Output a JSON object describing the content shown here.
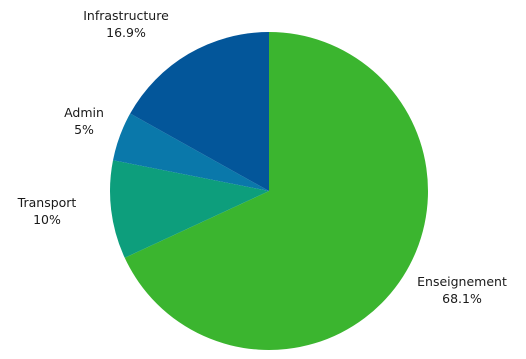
{
  "chart_data": {
    "type": "pie",
    "title": "",
    "start": "12 o'clock",
    "direction": "clockwise",
    "slices": [
      {
        "label": "Enseignement",
        "value": 68.1,
        "value_label": "68.1%",
        "color": "#3bb52f"
      },
      {
        "label": "Transport",
        "value": 10,
        "value_label": "10%",
        "color": "#0d9e7c"
      },
      {
        "label": "Admin",
        "value": 5,
        "value_label": "5%",
        "color": "#0a78aa"
      },
      {
        "label": "Infrastructure",
        "value": 16.9,
        "value_label": "16.9%",
        "color": "#03569a"
      }
    ],
    "legend": "none"
  }
}
